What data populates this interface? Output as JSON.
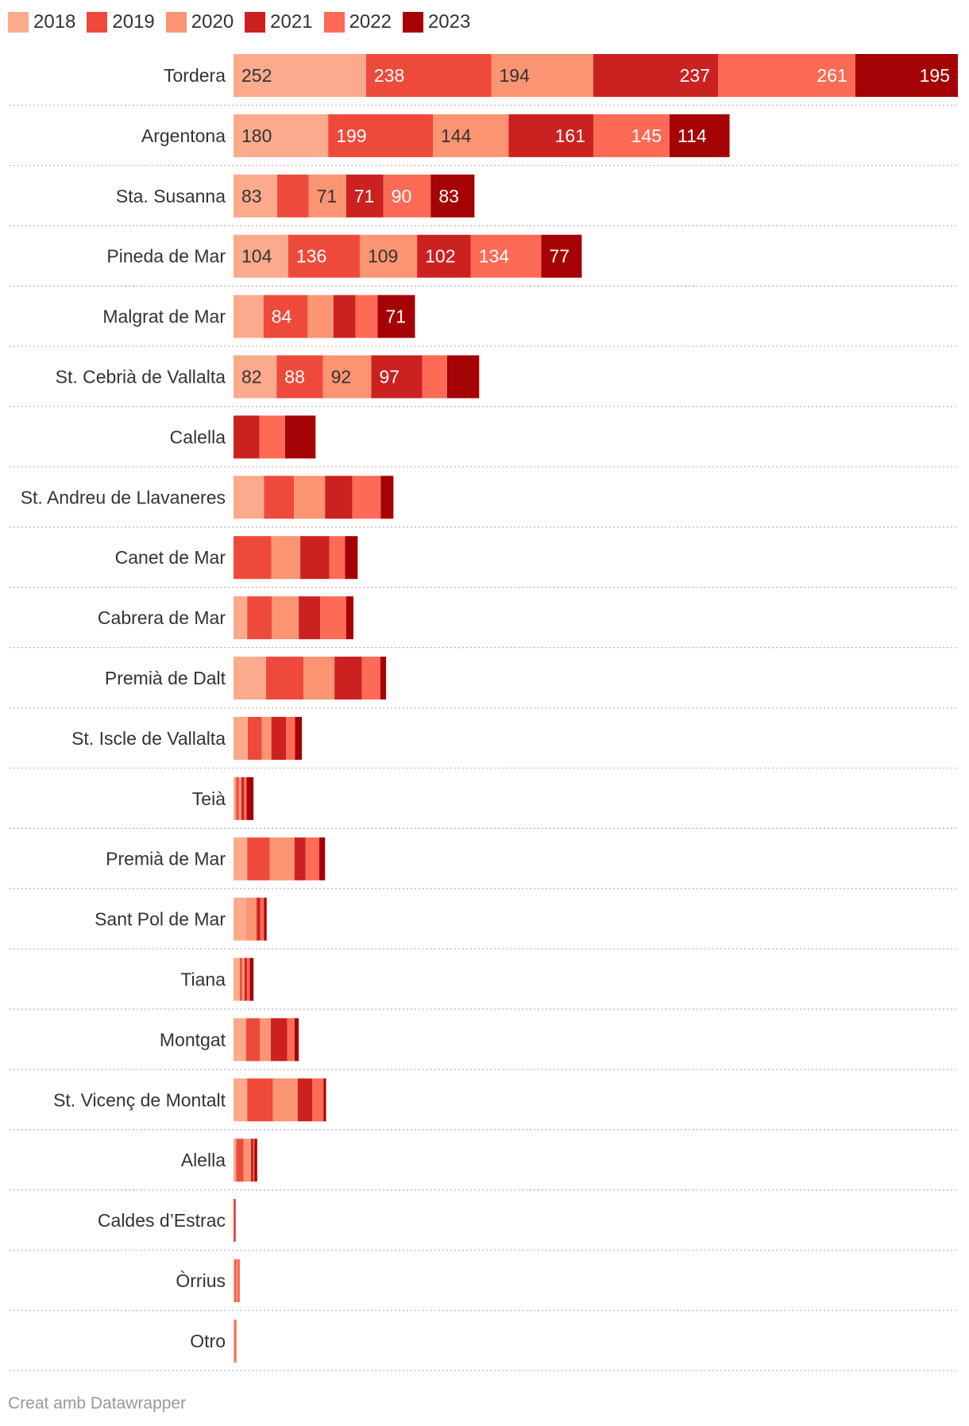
{
  "chart_data": {
    "type": "bar",
    "orientation": "horizontal",
    "stacked": true,
    "legend_position": "top-left",
    "series": [
      {
        "name": "2018",
        "color": "#fcaa8d"
      },
      {
        "name": "2019",
        "color": "#ee4a3c"
      },
      {
        "name": "2020",
        "color": "#fb9473"
      },
      {
        "name": "2021",
        "color": "#cc2121"
      },
      {
        "name": "2022",
        "color": "#fd6a55"
      },
      {
        "name": "2023",
        "color": "#a50205"
      }
    ],
    "rows": [
      {
        "label": "Tordera",
        "values": [
          252,
          238,
          194,
          237,
          261,
          195
        ],
        "labels": [
          "252",
          "238",
          "194",
          "237",
          "261",
          "195"
        ]
      },
      {
        "label": "Argentona",
        "values": [
          180,
          199,
          144,
          161,
          145,
          114
        ],
        "labels": [
          "180",
          "199",
          "144",
          "161",
          "145",
          "114"
        ]
      },
      {
        "label": "Sta. Susanna",
        "values": [
          83,
          60,
          71,
          71,
          90,
          83
        ],
        "labels": [
          "83",
          "",
          "71",
          "71",
          "90",
          "83"
        ]
      },
      {
        "label": "Pineda de Mar",
        "values": [
          104,
          136,
          109,
          102,
          134,
          77
        ],
        "labels": [
          "104",
          "136",
          "109",
          "102",
          "134",
          "77"
        ]
      },
      {
        "label": "Malgrat de Mar",
        "values": [
          57,
          84,
          49,
          42,
          42,
          71
        ],
        "labels": [
          "",
          "84",
          "",
          "",
          "",
          "71"
        ]
      },
      {
        "label": "St. Cebrià de Vallalta",
        "values": [
          82,
          88,
          92,
          97,
          47,
          61
        ],
        "labels": [
          "82",
          "88",
          "92",
          "97",
          "",
          ""
        ]
      },
      {
        "label": "Calella",
        "values": [
          0,
          0,
          0,
          49,
          49,
          58
        ],
        "labels": [
          "",
          "",
          "",
          "",
          "",
          ""
        ]
      },
      {
        "label": "St. Andreu de Llavaneres",
        "values": [
          58,
          57,
          59,
          52,
          54,
          24
        ],
        "labels": [
          "",
          "",
          "",
          "",
          "",
          ""
        ]
      },
      {
        "label": "Canet de Mar",
        "values": [
          0,
          72,
          55,
          55,
          30,
          24
        ],
        "labels": [
          "",
          "",
          "",
          "",
          "",
          ""
        ]
      },
      {
        "label": "Cabrera de Mar",
        "values": [
          26,
          47,
          51,
          41,
          49,
          14
        ],
        "labels": [
          "",
          "",
          "",
          "",
          "",
          ""
        ]
      },
      {
        "label": "Premià de Dalt",
        "values": [
          62,
          71,
          59,
          52,
          35,
          11
        ],
        "labels": [
          "",
          "",
          "",
          "",
          "",
          ""
        ]
      },
      {
        "label": "St. Iscle de Vallalta",
        "values": [
          27,
          27,
          18,
          28,
          17,
          13
        ],
        "labels": [
          "",
          "",
          "",
          "",
          "",
          ""
        ]
      },
      {
        "label": "Teià",
        "values": [
          5,
          5,
          5,
          5,
          5,
          13
        ],
        "labels": [
          "",
          "",
          "",
          "",
          "",
          ""
        ]
      },
      {
        "label": "Premià de Mar",
        "values": [
          26,
          43,
          47,
          21,
          26,
          11
        ],
        "labels": [
          "",
          "",
          "",
          "",
          "",
          ""
        ]
      },
      {
        "label": "Sant Pol de Mar",
        "values": [
          24,
          0,
          20,
          7,
          7,
          5
        ],
        "labels": [
          "",
          "",
          "",
          "",
          "",
          ""
        ]
      },
      {
        "label": "Tiana",
        "values": [
          12,
          4,
          5,
          5,
          5,
          7
        ],
        "labels": [
          "",
          "",
          "",
          "",
          "",
          ""
        ]
      },
      {
        "label": "Montgat",
        "values": [
          24,
          26,
          21,
          31,
          14,
          8
        ],
        "labels": [
          "",
          "",
          "",
          "",
          "",
          ""
        ]
      },
      {
        "label": "St. Vicenç de Montalt",
        "values": [
          26,
          49,
          47,
          28,
          21,
          5
        ],
        "labels": [
          "",
          "",
          "",
          "",
          "",
          ""
        ]
      },
      {
        "label": "Alella",
        "values": [
          5,
          14,
          14,
          5,
          2,
          5
        ],
        "labels": [
          "",
          "",
          "",
          "",
          "",
          ""
        ]
      },
      {
        "label": "Caldes d’Estrac",
        "values": [
          0,
          2,
          0,
          2,
          0,
          0
        ],
        "labels": [
          "",
          "",
          "",
          "",
          "",
          ""
        ]
      },
      {
        "label": "Òrrius",
        "values": [
          2,
          3,
          2,
          0,
          5,
          0
        ],
        "labels": [
          "",
          "",
          "",
          "",
          "",
          ""
        ]
      },
      {
        "label": "Otro",
        "values": [
          2,
          2,
          2,
          0,
          0,
          0
        ],
        "labels": [
          "",
          "",
          "",
          "",
          "",
          ""
        ]
      }
    ]
  },
  "footer": {
    "credit": "Creat amb Datawrapper"
  }
}
